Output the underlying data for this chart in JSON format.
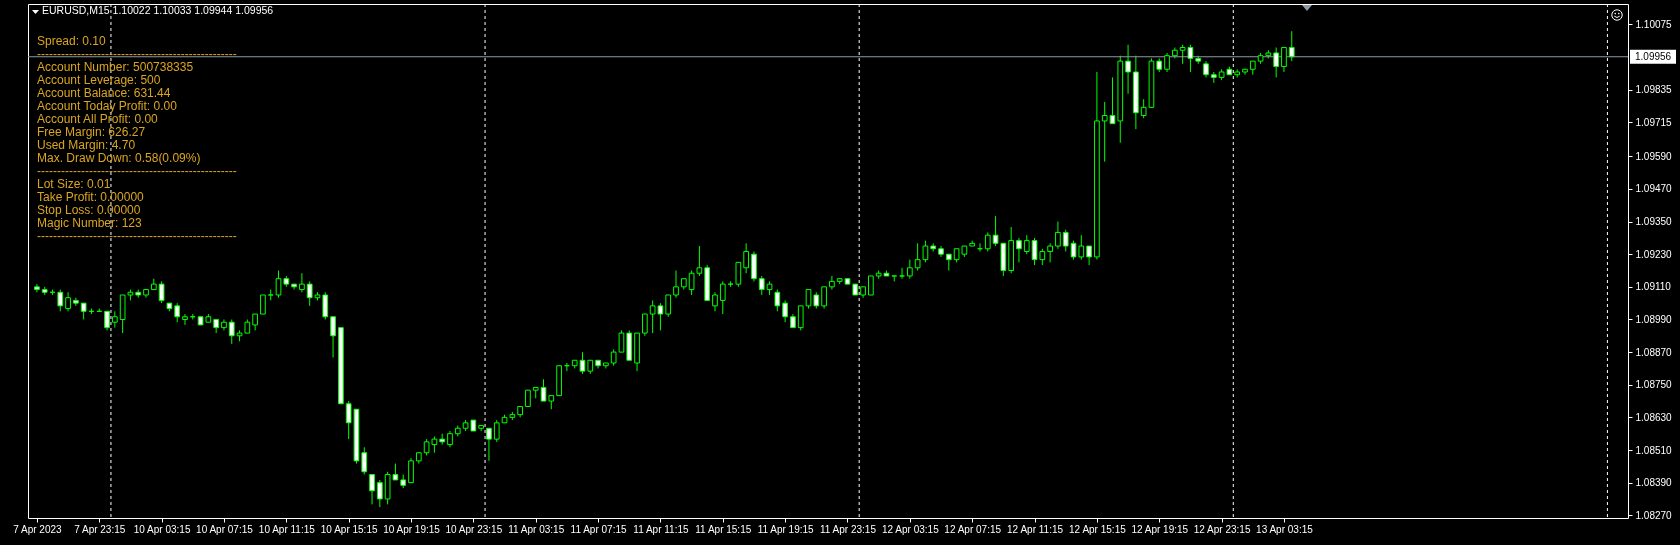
{
  "chart_data": {
    "type": "candlestick",
    "title": "EURUSD,M15 1.10022 1.10033 1.09944 1.09956",
    "color": "#00ff00",
    "categories": [
      "7 Apr 2023",
      null,
      null,
      null,
      null,
      null,
      null,
      null,
      "7 Apr 23:15",
      null,
      null,
      null,
      null,
      null,
      null,
      null,
      "10 Apr 03:15",
      null,
      null,
      null,
      null,
      null,
      null,
      null,
      "10 Apr 07:15",
      null,
      null,
      null,
      null,
      null,
      null,
      null,
      "10 Apr 11:15",
      null,
      null,
      null,
      null,
      null,
      null,
      null,
      "10 Apr 15:15",
      null,
      null,
      null,
      null,
      null,
      null,
      null,
      "10 Apr 19:15",
      null,
      null,
      null,
      null,
      null,
      null,
      null,
      "10 Apr 23:15",
      null,
      null,
      null,
      null,
      null,
      null,
      null,
      "11 Apr 03:15",
      null,
      null,
      null,
      null,
      null,
      null,
      null,
      "11 Apr 07:15",
      null,
      null,
      null,
      null,
      null,
      null,
      null,
      "11 Apr 11:15",
      null,
      null,
      null,
      null,
      null,
      null,
      null,
      "11 Apr 15:15",
      null,
      null,
      null,
      null,
      null,
      null,
      null,
      "11 Apr 19:15",
      null,
      null,
      null,
      null,
      null,
      null,
      null,
      "11 Apr 23:15",
      null,
      null,
      null,
      null,
      null,
      null,
      null,
      "12 Apr 03:15",
      null,
      null,
      null,
      null,
      null,
      null,
      null,
      "12 Apr 07:15",
      null,
      null,
      null,
      null,
      null,
      null,
      null,
      "12 Apr 11:15",
      null,
      null,
      null,
      null,
      null,
      null,
      null,
      "12 Apr 15:15",
      null,
      null,
      null,
      null,
      null,
      null,
      null,
      "12 Apr 19:15",
      null,
      null,
      null,
      null,
      null,
      null,
      null,
      "12 Apr 23:15",
      null,
      null,
      null,
      null,
      null,
      null,
      null,
      "13 Apr 03:15",
      null,
      null,
      null,
      null,
      null,
      null,
      null,
      null,
      null,
      null,
      null,
      null,
      null,
      null,
      null,
      null,
      null,
      null,
      null,
      null,
      null,
      null,
      null,
      null,
      null,
      null,
      null,
      null,
      null,
      null,
      null,
      null,
      null,
      null,
      null,
      null,
      null,
      null,
      null,
      null,
      null,
      null,
      null
    ],
    "ohlc": [
      [
        1.0911,
        1.0912,
        1.0909,
        1.091
      ],
      [
        1.091,
        1.0911,
        1.0908,
        1.0909
      ],
      [
        1.0909,
        1.091,
        1.0908,
        1.0909
      ],
      [
        1.0909,
        1.091,
        1.0902,
        1.0904
      ],
      [
        1.0903,
        1.0909,
        1.0902,
        1.0907
      ],
      [
        1.0906,
        1.0907,
        1.0904,
        1.0905
      ],
      [
        1.0905,
        1.0905,
        1.0899,
        1.0902
      ],
      [
        1.0902,
        1.0903,
        1.0901,
        1.0902
      ],
      [
        1.0902,
        1.0903,
        1.0902,
        1.0902
      ],
      [
        1.0902,
        1.0902,
        1.0895,
        1.0896
      ],
      [
        1.0898,
        1.0902,
        1.0896,
        1.09
      ],
      [
        1.0899,
        1.0908,
        1.0894,
        1.0908
      ],
      [
        1.0908,
        1.091,
        1.0906,
        1.0909
      ],
      [
        1.0909,
        1.091,
        1.0907,
        1.0908
      ],
      [
        1.0908,
        1.091,
        1.0907,
        1.091
      ],
      [
        1.091,
        1.0914,
        1.091,
        1.0912
      ],
      [
        1.0912,
        1.0913,
        1.0905,
        1.0906
      ],
      [
        1.0905,
        1.0905,
        1.0902,
        1.0903
      ],
      [
        1.0904,
        1.0905,
        1.0898,
        1.09
      ],
      [
        1.0899,
        1.0901,
        1.0897,
        1.09
      ],
      [
        1.09,
        1.0901,
        1.0899,
        1.09
      ],
      [
        1.09,
        1.09,
        1.0897,
        1.0897
      ],
      [
        1.0898,
        1.0901,
        1.0898,
        1.09
      ],
      [
        1.0899,
        1.0899,
        1.0894,
        1.0896
      ],
      [
        1.0896,
        1.0899,
        1.0895,
        1.0898
      ],
      [
        1.0898,
        1.0899,
        1.089,
        1.0893
      ],
      [
        1.0893,
        1.0895,
        1.0891,
        1.0894
      ],
      [
        1.0894,
        1.0899,
        1.0894,
        1.0898
      ],
      [
        1.0897,
        1.0901,
        1.0895,
        1.0901
      ],
      [
        1.0901,
        1.0908,
        1.0901,
        1.0908
      ],
      [
        1.0908,
        1.091,
        1.0906,
        1.0908
      ],
      [
        1.0908,
        1.0917,
        1.0907,
        1.0914
      ],
      [
        1.0914,
        1.0915,
        1.0911,
        1.0912
      ],
      [
        1.0912,
        1.0912,
        1.091,
        1.0911
      ],
      [
        1.091,
        1.0916,
        1.0909,
        1.0912
      ],
      [
        1.0912,
        1.0913,
        1.0904,
        1.0907
      ],
      [
        1.0907,
        1.0909,
        1.0906,
        1.0908
      ],
      [
        1.0908,
        1.0909,
        1.0899,
        1.09
      ],
      [
        1.09,
        1.09,
        1.0885,
        1.0893
      ],
      [
        1.0896,
        1.0896,
        1.0868,
        1.0868
      ],
      [
        1.0868,
        1.0869,
        1.0855,
        1.0861
      ],
      [
        1.0866,
        1.0866,
        1.0846,
        1.0847
      ],
      [
        1.085,
        1.0852,
        1.0842,
        1.0843
      ],
      [
        1.0842,
        1.0842,
        1.0831,
        1.0836
      ],
      [
        1.0839,
        1.084,
        1.083,
        1.0833
      ],
      [
        1.0833,
        1.0843,
        1.0831,
        1.0842
      ],
      [
        1.0842,
        1.0846,
        1.084,
        1.084
      ],
      [
        1.084,
        1.0842,
        1.0837,
        1.0838
      ],
      [
        1.0839,
        1.0848,
        1.0839,
        1.0847
      ],
      [
        1.0847,
        1.085,
        1.0846,
        1.085
      ],
      [
        1.085,
        1.0855,
        1.0849,
        1.0854
      ],
      [
        1.0853,
        1.0856,
        1.085,
        1.0855
      ],
      [
        1.0855,
        1.0857,
        1.0853,
        1.0854
      ],
      [
        1.0853,
        1.0858,
        1.0852,
        1.0857
      ],
      [
        1.0857,
        1.086,
        1.0856,
        1.0859
      ],
      [
        1.0859,
        1.0862,
        1.0858,
        1.0861
      ],
      [
        1.0862,
        1.0862,
        1.0858,
        1.0858
      ],
      [
        1.0859,
        1.086,
        1.0858,
        1.086
      ],
      [
        1.0859,
        1.0859,
        1.0847,
        1.0855
      ],
      [
        1.0855,
        1.0862,
        1.0854,
        1.0861
      ],
      [
        1.0861,
        1.0864,
        1.0861,
        1.0863
      ],
      [
        1.0863,
        1.0865,
        1.0862,
        1.0864
      ],
      [
        1.0864,
        1.0867,
        1.0863,
        1.0867
      ],
      [
        1.0867,
        1.0873,
        1.0867,
        1.0873
      ],
      [
        1.0873,
        1.0874,
        1.087,
        1.0874
      ],
      [
        1.0874,
        1.0877,
        1.0869,
        1.0869
      ],
      [
        1.0869,
        1.0871,
        1.0866,
        1.0871
      ],
      [
        1.0871,
        1.0882,
        1.0871,
        1.0882
      ],
      [
        1.0882,
        1.0883,
        1.088,
        1.0882
      ],
      [
        1.0882,
        1.0884,
        1.0881,
        1.0884
      ],
      [
        1.0884,
        1.0887,
        1.0879,
        1.088
      ],
      [
        1.088,
        1.0884,
        1.0879,
        1.0884
      ],
      [
        1.0884,
        1.0884,
        1.0881,
        1.0882
      ],
      [
        1.0882,
        1.0883,
        1.0881,
        1.0883
      ],
      [
        1.0883,
        1.0888,
        1.0882,
        1.0887
      ],
      [
        1.0887,
        1.0895,
        1.0887,
        1.0894
      ],
      [
        1.0894,
        1.0895,
        1.0884,
        1.0884
      ],
      [
        1.0883,
        1.0894,
        1.088,
        1.0894
      ],
      [
        1.0894,
        1.0901,
        1.0893,
        1.0901
      ],
      [
        1.0901,
        1.0906,
        1.0894,
        1.0904
      ],
      [
        1.0904,
        1.0905,
        1.0895,
        1.0901
      ],
      [
        1.0901,
        1.0908,
        1.09,
        1.0908
      ],
      [
        1.0908,
        1.0917,
        1.0907,
        1.0911
      ],
      [
        1.0911,
        1.0914,
        1.091,
        1.0914
      ],
      [
        1.091,
        1.0917,
        1.0908,
        1.0916
      ],
      [
        1.0916,
        1.0926,
        1.0915,
        1.0918
      ],
      [
        1.0918,
        1.0919,
        1.0906,
        1.0906
      ],
      [
        1.0904,
        1.0909,
        1.0902,
        1.0908
      ],
      [
        1.0906,
        1.0913,
        1.0901,
        1.0912
      ],
      [
        1.0912,
        1.0913,
        1.0911,
        1.0912
      ],
      [
        1.0912,
        1.092,
        1.0911,
        1.092
      ],
      [
        1.0918,
        1.0927,
        1.0916,
        1.0924
      ],
      [
        1.0923,
        1.0924,
        1.0913,
        1.0914
      ],
      [
        1.0914,
        1.0915,
        1.0908,
        1.091
      ],
      [
        1.091,
        1.0913,
        1.0908,
        1.0912
      ],
      [
        1.0909,
        1.091,
        1.0902,
        1.0904
      ],
      [
        1.0905,
        1.0906,
        1.0898,
        1.09
      ],
      [
        1.09,
        1.0901,
        1.0896,
        1.0896
      ],
      [
        1.0896,
        1.0904,
        1.0895,
        1.0904
      ],
      [
        1.0904,
        1.091,
        1.0903,
        1.091
      ],
      [
        1.0908,
        1.0909,
        1.0903,
        1.0904
      ],
      [
        1.0904,
        1.0911,
        1.0903,
        1.0911
      ],
      [
        1.0911,
        1.0915,
        1.091,
        1.0913
      ],
      [
        1.0913,
        1.0914,
        1.0912,
        1.0914
      ],
      [
        1.0914,
        1.0914,
        1.0912,
        1.0912
      ],
      [
        1.0912,
        1.0912,
        1.0908,
        1.0908
      ],
      [
        1.0908,
        1.0911,
        1.0907,
        1.0911
      ],
      [
        1.0908,
        1.0915,
        1.0908,
        1.0915
      ],
      [
        1.0915,
        1.0917,
        1.0914,
        1.0916
      ],
      [
        1.0916,
        1.0917,
        1.0915,
        1.0915
      ],
      [
        1.0915,
        1.0915,
        1.0913,
        1.0915
      ],
      [
        1.0915,
        1.0918,
        1.0914,
        1.0915
      ],
      [
        1.0915,
        1.0921,
        1.0914,
        1.0918
      ],
      [
        1.0918,
        1.0927,
        1.0917,
        1.0921
      ],
      [
        1.0921,
        1.0928,
        1.092,
        1.0926
      ],
      [
        1.0926,
        1.0927,
        1.0924,
        1.0925
      ],
      [
        1.0925,
        1.0926,
        1.0922,
        1.0923
      ],
      [
        1.0923,
        1.0923,
        1.0917,
        1.0921
      ],
      [
        1.0921,
        1.0925,
        1.092,
        1.0925
      ],
      [
        1.0923,
        1.0926,
        1.0922,
        1.0926
      ],
      [
        1.0926,
        1.0928,
        1.0926,
        1.0927
      ],
      [
        1.0925,
        1.0927,
        1.0924,
        1.0925
      ],
      [
        1.0925,
        1.0931,
        1.0924,
        1.093
      ],
      [
        1.093,
        1.0937,
        1.0926,
        1.0927
      ],
      [
        1.0927,
        1.0927,
        1.0915,
        1.0917
      ],
      [
        1.0917,
        1.0933,
        1.0916,
        1.0928
      ],
      [
        1.0928,
        1.0929,
        1.092,
        1.0925
      ],
      [
        1.0924,
        1.093,
        1.0923,
        1.0928
      ],
      [
        1.0928,
        1.0929,
        1.0919,
        1.0921
      ],
      [
        1.0921,
        1.0925,
        1.0919,
        1.0924
      ],
      [
        1.0924,
        1.0927,
        1.092,
        1.0926
      ],
      [
        1.0926,
        1.0935,
        1.0925,
        1.0931
      ],
      [
        1.0931,
        1.0932,
        1.0924,
        1.0926
      ],
      [
        1.0927,
        1.0928,
        1.0921,
        1.0922
      ],
      [
        1.0922,
        1.093,
        1.0921,
        1.0926
      ],
      [
        1.0926,
        1.0926,
        1.0919,
        1.0922
      ],
      [
        1.0922,
        1.099,
        1.0921,
        1.0972
      ],
      [
        1.0972,
        1.0979,
        1.0957,
        1.0974
      ],
      [
        1.0974,
        1.0988,
        1.0971,
        1.0971
      ],
      [
        1.0972,
        1.0996,
        1.0964,
        1.0994
      ],
      [
        1.0994,
        1.1,
        1.0982,
        1.099
      ],
      [
        1.099,
        1.0996,
        1.0969,
        1.0975
      ],
      [
        1.0974,
        1.098,
        1.0973,
        1.0977
      ],
      [
        1.0977,
        1.0995,
        1.0977,
        1.0994
      ],
      [
        1.0994,
        1.0995,
        1.099,
        1.0991
      ],
      [
        1.0991,
        1.0997,
        1.099,
        1.0996
      ],
      [
        1.0996,
        1.0999,
        1.0995,
        1.0998
      ],
      [
        1.0998,
        1.1,
        1.0993,
        1.0999
      ],
      [
        1.0999,
        1.1,
        1.099,
        1.0995
      ],
      [
        1.0995,
        1.0996,
        1.0993,
        1.0994
      ],
      [
        1.0993,
        1.0994,
        1.0988,
        1.0989
      ],
      [
        1.0989,
        1.099,
        1.0986,
        1.0988
      ],
      [
        1.0988,
        1.0991,
        1.0987,
        1.099
      ],
      [
        1.0991,
        1.0992,
        1.0989,
        1.0989
      ],
      [
        1.0989,
        1.0991,
        1.0988,
        1.099
      ],
      [
        1.099,
        1.0991,
        1.0989,
        1.0991
      ],
      [
        1.0991,
        1.0994,
        1.0989,
        1.0994
      ],
      [
        1.0994,
        1.0997,
        1.0993,
        1.0996
      ],
      [
        1.0996,
        1.0998,
        1.0995,
        1.0997
      ],
      [
        1.0997,
        1.0999,
        1.0988,
        1.0992
      ],
      [
        1.0992,
        1.0999,
        1.099,
        1.0999
      ],
      [
        1.0999,
        1.1005,
        1.0994,
        1.09956
      ],
      null,
      null,
      null,
      null,
      null,
      null,
      null,
      null,
      null,
      null,
      null,
      null,
      null,
      null,
      null,
      null,
      null,
      null,
      null,
      null,
      null,
      null,
      null,
      null,
      null,
      null,
      null,
      null,
      null,
      null,
      null,
      null,
      null,
      null,
      null,
      null,
      null,
      null,
      null,
      null,
      null,
      null
    ],
    "ylim": [
      1.0826,
      1.1015
    ],
    "yticks": [
      1.10075,
      1.09835,
      1.09715,
      {
        "value": 1.0959,
        "label": "1.09590"
      },
      {
        "value": 1.0947,
        "label": "1.09470"
      },
      {
        "value": 1.0935,
        "label": "1.09350"
      },
      {
        "value": 1.0923,
        "label": "1.09230"
      },
      {
        "value": 1.0911,
        "label": "1.09110"
      },
      {
        "value": 1.0899,
        "label": "1.08990"
      },
      {
        "value": 1.0887,
        "label": "1.08870"
      },
      {
        "value": 1.0875,
        "label": "1.08750"
      },
      {
        "value": 1.0863,
        "label": "1.08630"
      },
      {
        "value": 1.0851,
        "label": "1.08510"
      },
      {
        "value": 1.0839,
        "label": "1.08390"
      },
      {
        "value": 1.0827,
        "label": "1.08270"
      }
    ],
    "ref_lines": [
      {
        "axis": "y",
        "value": 1.09956,
        "label": "1.09956",
        "color": "#8c9aa8"
      }
    ],
    "annotations": [
      "Spread: 0.10",
      "--------------------------------------------------",
      "Account Number: 500738335",
      "Account Leverage: 500",
      "Account Balance: 631.44",
      "Account Today Profit: 0.00",
      "Account All Profit: 0.00",
      "Free Margin: 626.27",
      "Used Margin: 4.70",
      "Max. Draw Down: 0.58(0.09%)",
      "--------------------------------------------------",
      "Lot Size: 0.01",
      "Take Profit: 0.00000",
      "Stop Loss: 0.00000",
      "Magic Number: 123",
      "--------------------------------------------------"
    ]
  }
}
